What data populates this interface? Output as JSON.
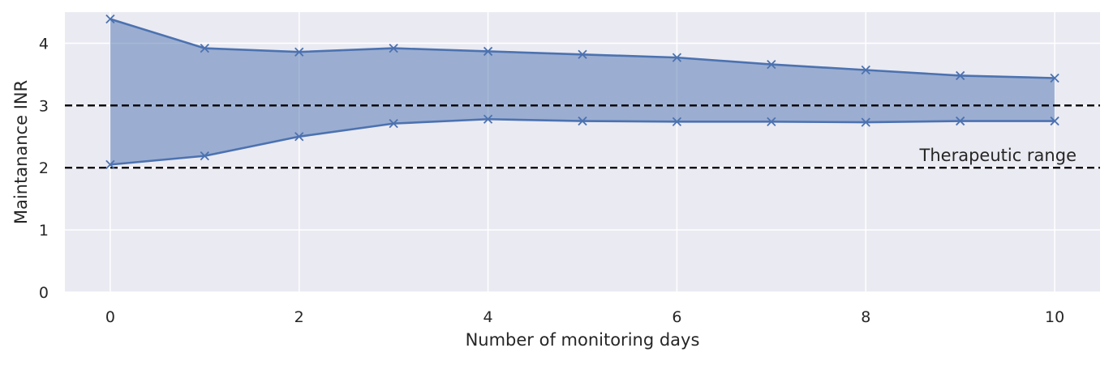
{
  "chart_data": {
    "type": "line",
    "title": "",
    "xlabel": "Number of monitoring days",
    "ylabel": "Maintanance INR",
    "xlim": [
      -0.48,
      10.48
    ],
    "ylim": [
      0,
      4.5
    ],
    "x_ticks": [
      0,
      2,
      4,
      6,
      8,
      10
    ],
    "y_ticks": [
      0,
      1,
      2,
      3,
      4
    ],
    "grid": true,
    "x": [
      0,
      1,
      2,
      3,
      4,
      5,
      6,
      7,
      8,
      9,
      10
    ],
    "series": [
      {
        "values": [
          4.39,
          3.92,
          3.86,
          3.92,
          3.87,
          3.82,
          3.77,
          3.66,
          3.57,
          3.48,
          3.44
        ]
      },
      {
        "values": [
          2.05,
          2.19,
          2.5,
          2.71,
          2.78,
          2.75,
          2.74,
          2.74,
          2.73,
          2.75,
          2.75
        ]
      }
    ],
    "fill_between_series": true,
    "marker": "x",
    "reference_lines": [
      {
        "y": 3,
        "style": "dashed"
      },
      {
        "y": 2,
        "style": "dashed"
      }
    ],
    "annotation": {
      "text": "Therapeutic range",
      "x": 10,
      "y": 2.2
    },
    "colors": {
      "series": "#4c72b0",
      "fill": "#4c72b0",
      "background": "#eaeaf2",
      "grid": "#ffffff",
      "reference": "#000000",
      "text": "#262626"
    }
  }
}
